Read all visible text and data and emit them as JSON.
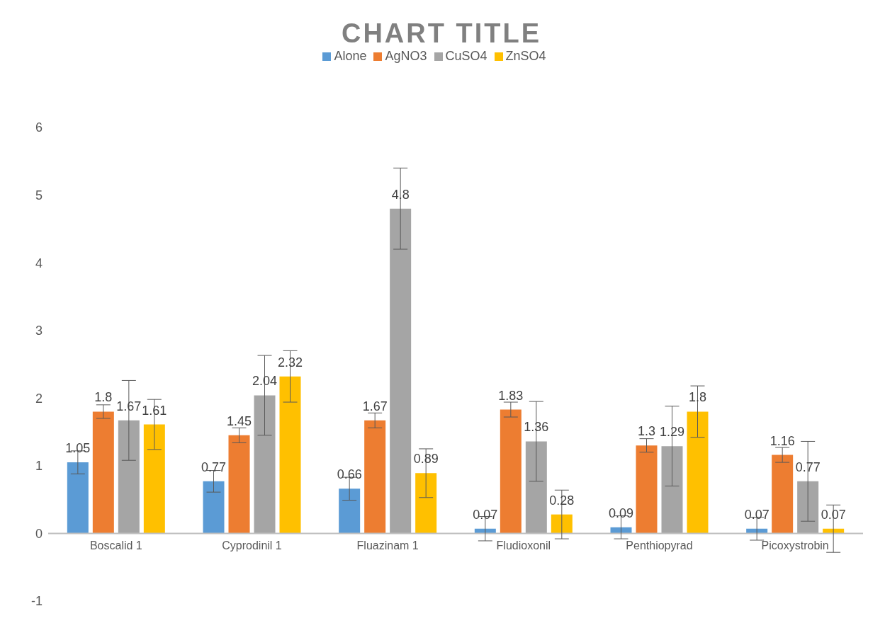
{
  "chart_data": {
    "type": "bar",
    "title": "CHART TITLE",
    "categories": [
      "Boscalid 1",
      "Cyprodinil 1",
      "Fluazinam 1",
      "Fludioxonil",
      "Penthiopyrad",
      "Picoxystrobin"
    ],
    "series": [
      {
        "name": "Alone",
        "color": "#5b9bd5",
        "values": [
          1.05,
          0.77,
          0.66,
          0.07,
          0.09,
          0.07
        ],
        "errors": [
          0.17,
          0.16,
          0.17,
          0.18,
          0.17,
          0.17
        ]
      },
      {
        "name": "AgNO3",
        "color": "#ed7d31",
        "values": [
          1.8,
          1.45,
          1.67,
          1.83,
          1.3,
          1.16
        ],
        "errors": [
          0.1,
          0.11,
          0.11,
          0.11,
          0.1,
          0.11
        ]
      },
      {
        "name": "CuSO4",
        "color": "#a5a5a5",
        "values": [
          1.67,
          2.04,
          4.8,
          1.36,
          1.29,
          0.77
        ],
        "errors": [
          0.59,
          0.59,
          0.6,
          0.59,
          0.59,
          0.59
        ]
      },
      {
        "name": "ZnSO4",
        "color": "#ffc000",
        "values": [
          1.61,
          2.32,
          0.89,
          0.28,
          1.8,
          0.07
        ],
        "errors": [
          0.37,
          0.38,
          0.36,
          0.36,
          0.38,
          0.35
        ]
      }
    ],
    "ylim": [
      -1,
      6
    ],
    "yticks": [
      -1,
      0,
      1,
      2,
      3,
      4,
      5,
      6
    ],
    "grid": false,
    "legend": "top",
    "data_labels": true
  }
}
